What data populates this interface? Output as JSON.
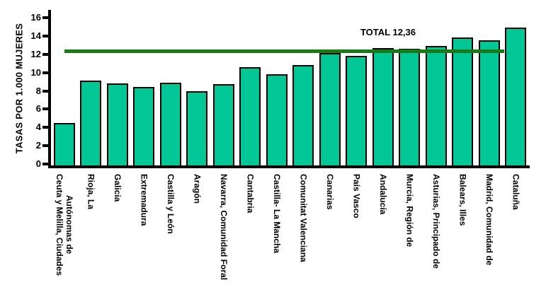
{
  "chart_data": {
    "type": "bar",
    "title": "",
    "xlabel": "",
    "ylabel": "TASAS POR 1.000 MUJERES",
    "ylim": [
      0,
      16
    ],
    "yticks": [
      0,
      2,
      4,
      6,
      8,
      10,
      12,
      14,
      16
    ],
    "grid": false,
    "legend_position": "none",
    "bar_color": "#00C795",
    "bar_border_color": "#000000",
    "categories": [
      "Ceuta y Melilla, Ciudades\nAutónomas de",
      "Rioja, La",
      "Galicia",
      "Extremadura",
      "Castilla y León",
      "Aragón",
      "Navarra, Comunidad Foral",
      "Cantabria",
      "Castilla- La Mancha",
      "Comunitat Valenciana",
      "Canarias",
      "País Vasco",
      "Andalucía",
      "Murcia, Región de",
      "Asturias, Principado de",
      "Balears, Illes",
      "Madrid, Comunidad de",
      "Cataluña"
    ],
    "values": [
      4.5,
      9.1,
      8.8,
      8.4,
      8.9,
      8.0,
      8.7,
      10.6,
      9.8,
      10.8,
      12.1,
      11.8,
      12.7,
      12.6,
      12.9,
      13.8,
      13.5,
      14.9
    ],
    "reference_line": {
      "label": "TOTAL 12,36",
      "value": 12.36,
      "color": "#177C17"
    }
  }
}
